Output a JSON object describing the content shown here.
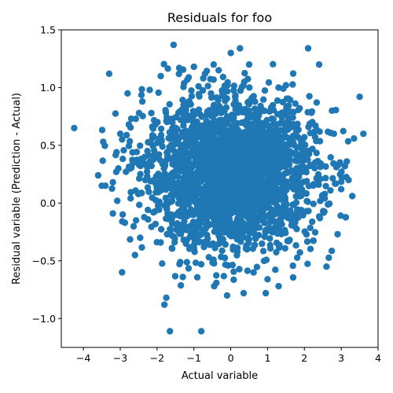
{
  "chart_data": {
    "type": "scatter",
    "title": "Residuals for foo",
    "xlabel": "Actual variable",
    "ylabel": "Residual variable (Prediction - Actual)",
    "xlim": [
      -4.6,
      4.0
    ],
    "ylim": [
      -1.25,
      1.5
    ],
    "xticks": [
      -4,
      -3,
      -2,
      -1,
      0,
      1,
      2,
      3,
      4
    ],
    "xtick_labels": [
      "−4",
      "−3",
      "−2",
      "−1",
      "0",
      "1",
      "2",
      "3",
      "4"
    ],
    "yticks": [
      -1.0,
      -0.5,
      0.0,
      0.5,
      1.0,
      1.5
    ],
    "ytick_labels": [
      "−1.0",
      "−0.5",
      "0.0",
      "0.5",
      "1.0",
      "1.5"
    ],
    "grid": false,
    "marker_color": "#1f77b4",
    "series": [
      {
        "points": [
          [
            -4.25,
            0.65
          ],
          [
            -3.6,
            0.24
          ],
          [
            -3.5,
            0.15
          ],
          [
            -3.4,
            0.15
          ],
          [
            -3.3,
            1.12
          ],
          [
            -3.2,
            0.18
          ],
          [
            -3.2,
            -0.09
          ],
          [
            -3.1,
            0.44
          ],
          [
            -3.05,
            0.3
          ],
          [
            -3.0,
            0.6
          ],
          [
            -2.95,
            -0.6
          ],
          [
            -2.8,
            0.95
          ],
          [
            -2.7,
            0.73
          ],
          [
            -2.6,
            -0.45
          ],
          [
            -2.4,
            0.88
          ],
          [
            -2.2,
            0.98
          ],
          [
            -1.9,
            1.1
          ],
          [
            -1.8,
            -0.88
          ],
          [
            -1.75,
            -0.82
          ],
          [
            -1.65,
            -1.11
          ],
          [
            -1.55,
            1.37
          ],
          [
            -1.4,
            1.17
          ],
          [
            -1.3,
            -0.64
          ],
          [
            -1.0,
            1.18
          ],
          [
            -0.8,
            -1.11
          ],
          [
            -0.7,
            1.12
          ],
          [
            -0.45,
            -0.72
          ],
          [
            -0.1,
            -0.8
          ],
          [
            0.0,
            1.3
          ],
          [
            0.25,
            1.34
          ],
          [
            0.35,
            -0.78
          ],
          [
            0.5,
            1.2
          ],
          [
            0.95,
            -0.78
          ],
          [
            1.0,
            -0.66
          ],
          [
            1.3,
            -0.72
          ],
          [
            1.5,
            1.02
          ],
          [
            2.1,
            1.34
          ],
          [
            2.4,
            1.2
          ],
          [
            2.6,
            -0.55
          ],
          [
            2.75,
            0.8
          ],
          [
            2.8,
            0.6
          ],
          [
            2.9,
            -0.27
          ],
          [
            3.0,
            0.12
          ],
          [
            3.1,
            0.32
          ],
          [
            3.2,
            0.2
          ],
          [
            3.3,
            0.06
          ],
          [
            3.5,
            0.92
          ],
          [
            3.6,
            0.6
          ]
        ]
      }
    ]
  }
}
